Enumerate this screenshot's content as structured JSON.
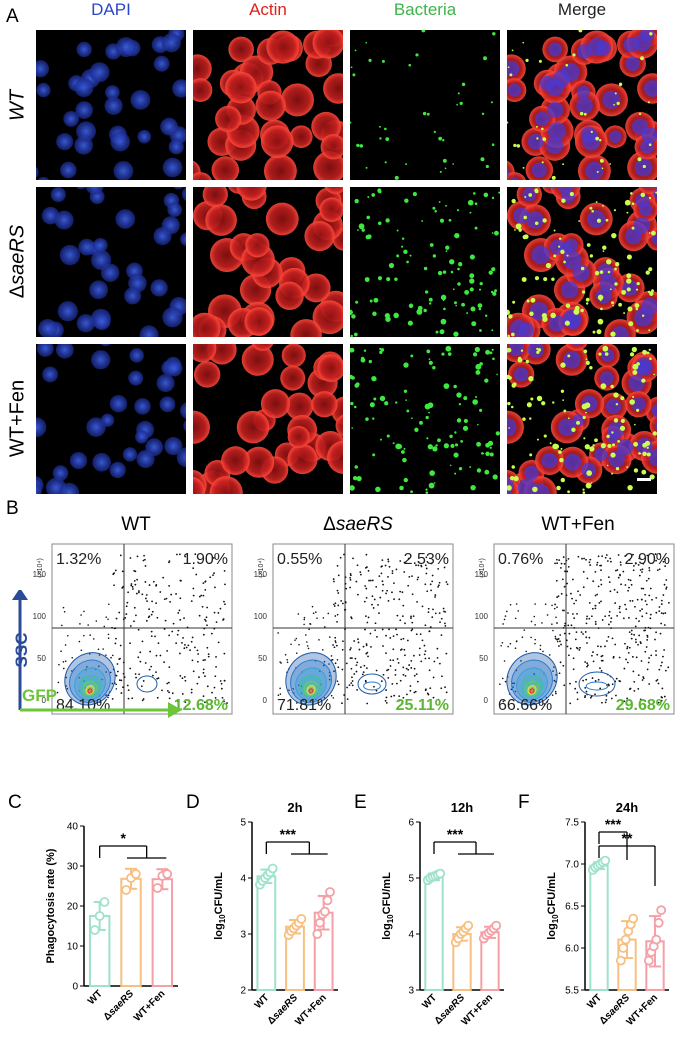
{
  "figure": {
    "panel_letters": [
      "A",
      "B",
      "C",
      "D",
      "E",
      "F"
    ]
  },
  "panel_a": {
    "column_headers": [
      {
        "text": "DAPI",
        "color": "#2b45c8"
      },
      {
        "text": "Actin",
        "color": "#e0201b"
      },
      {
        "text": "Bacteria",
        "color": "#3cb44a"
      },
      {
        "text": "Merge",
        "color": "#222222"
      }
    ],
    "row_labels": [
      {
        "prefix": "",
        "italic": "WT",
        "suffix": ""
      },
      {
        "prefix": "Δ",
        "italic": "saeRS",
        "suffix": ""
      },
      {
        "prefix": "WT+Fen",
        "italic": "",
        "suffix": ""
      }
    ],
    "scale_bar": "white"
  },
  "panel_b": {
    "axis_labels": {
      "y": "SSC",
      "x": "GFP",
      "y_color": "#2a4a9a",
      "x_color": "#6cc53b"
    },
    "y_multiplier": "(×10⁴)",
    "y_ticks": [
      "0",
      "50",
      "100",
      "150"
    ],
    "x_ticks": [
      "10¹",
      "10²",
      "10³",
      "10⁴",
      "10⁶"
    ],
    "plots": [
      {
        "title_prefix": "",
        "title_italic": "WT",
        "ul": "1.32%",
        "ur": "1.90%",
        "ll": "84.10%",
        "lr": "12.68%"
      },
      {
        "title_prefix": "Δ",
        "title_italic": "saeRS",
        "ul": "0.55%",
        "ur": "2.53%",
        "ll": "71.81%",
        "lr": "25.11%"
      },
      {
        "title_prefix": "",
        "title_italic": "WT+Fen",
        "ul": "0.76%",
        "ur": "2.90%",
        "ll": "66.66%",
        "lr": "29.68%"
      }
    ]
  },
  "chart_data": [
    {
      "type": "bar",
      "panel": "C",
      "title": "",
      "ylabel": "Phagocytosis rate (%)",
      "ylim": [
        0,
        40
      ],
      "yticks": [
        0,
        10,
        20,
        30,
        40
      ],
      "categories": [
        "WT",
        "ΔsaeRS",
        "WT+Fen"
      ],
      "category_display": [
        {
          "pre": "",
          "it": "",
          "post": "WT"
        },
        {
          "pre": "Δ",
          "it": "saeRS",
          "post": ""
        },
        {
          "pre": "",
          "it": "",
          "post": "WT+Fen"
        }
      ],
      "values": [
        17.5,
        26.8,
        26.7
      ],
      "errors": [
        3.5,
        2.5,
        2.5
      ],
      "points": [
        [
          14,
          17.5,
          21
        ],
        [
          24,
          27,
          28
        ],
        [
          24.5,
          27.5,
          28
        ]
      ],
      "colors": [
        "#9fe2cc",
        "#f7c081",
        "#f4a0a6"
      ],
      "significance": [
        {
          "label": "*",
          "from": 0,
          "to": [
            1,
            2
          ]
        }
      ]
    },
    {
      "type": "bar",
      "panel": "D",
      "title": "2h",
      "ylabel": "log10CFU/mL",
      "ylim": [
        2,
        5
      ],
      "yticks": [
        2,
        3,
        4,
        5
      ],
      "categories": [
        "WT",
        "ΔsaeRS",
        "WT+Fen"
      ],
      "category_display": [
        {
          "pre": "",
          "it": "",
          "post": "WT"
        },
        {
          "pre": "Δ",
          "it": "saeRS",
          "post": ""
        },
        {
          "pre": "",
          "it": "",
          "post": "WT+Fen"
        }
      ],
      "values": [
        4.03,
        3.13,
        3.38
      ],
      "errors": [
        0.12,
        0.12,
        0.3
      ],
      "points": [
        [
          3.88,
          3.95,
          4.0,
          4.05,
          4.1,
          4.17
        ],
        [
          2.98,
          3.05,
          3.1,
          3.15,
          3.2,
          3.27
        ],
        [
          3.0,
          3.2,
          3.35,
          3.4,
          3.6,
          3.75
        ]
      ],
      "colors": [
        "#9fe2cc",
        "#f7c081",
        "#f4a0a6"
      ],
      "significance": [
        {
          "label": "***",
          "from": 0,
          "to": [
            1,
            2
          ]
        }
      ]
    },
    {
      "type": "bar",
      "panel": "E",
      "title": "12h",
      "ylabel": "log10CFU/mL",
      "ylim": [
        3,
        6
      ],
      "yticks": [
        3,
        4,
        5,
        6
      ],
      "categories": [
        "WT",
        "ΔsaeRS",
        "WT+Fen"
      ],
      "category_display": [
        {
          "pre": "",
          "it": "",
          "post": "WT"
        },
        {
          "pre": "Δ",
          "it": "saeRS",
          "post": ""
        },
        {
          "pre": "",
          "it": "",
          "post": "WT+Fen"
        }
      ],
      "values": [
        5.02,
        4.0,
        4.03
      ],
      "errors": [
        0.06,
        0.12,
        0.1
      ],
      "points": [
        [
          4.96,
          5.0,
          5.02,
          5.04,
          5.06,
          5.08
        ],
        [
          3.85,
          3.92,
          4.0,
          4.04,
          4.1,
          4.15
        ],
        [
          3.92,
          3.98,
          4.02,
          4.06,
          4.1,
          4.15
        ]
      ],
      "colors": [
        "#9fe2cc",
        "#f7c081",
        "#f4a0a6"
      ],
      "significance": [
        {
          "label": "***",
          "from": 0,
          "to": [
            1,
            2
          ]
        }
      ]
    },
    {
      "type": "bar",
      "panel": "F",
      "title": "24h",
      "ylabel": "log10CFU/mL",
      "ylim": [
        5.5,
        7.5
      ],
      "yticks": [
        5.5,
        6.0,
        6.5,
        7.0,
        7.5
      ],
      "categories": [
        "WT",
        "ΔsaeRS",
        "WT+Fen"
      ],
      "category_display": [
        {
          "pre": "",
          "it": "",
          "post": "WT"
        },
        {
          "pre": "Δ",
          "it": "saeRS",
          "post": ""
        },
        {
          "pre": "",
          "it": "",
          "post": "WT+Fen"
        }
      ],
      "values": [
        6.98,
        6.1,
        6.08
      ],
      "errors": [
        0.04,
        0.22,
        0.3
      ],
      "points": [
        [
          6.93,
          6.96,
          6.98,
          7.0,
          7.02,
          7.04
        ],
        [
          5.85,
          6.0,
          6.1,
          6.2,
          6.28,
          6.35
        ],
        [
          5.85,
          5.95,
          6.02,
          6.1,
          6.3,
          6.45
        ]
      ],
      "colors": [
        "#9fe2cc",
        "#f7c081",
        "#f4a0a6"
      ],
      "significance": [
        {
          "label": "***",
          "from": 0,
          "to": [
            1
          ]
        },
        {
          "label": "**",
          "from": 0,
          "to": [
            2
          ]
        }
      ]
    }
  ]
}
